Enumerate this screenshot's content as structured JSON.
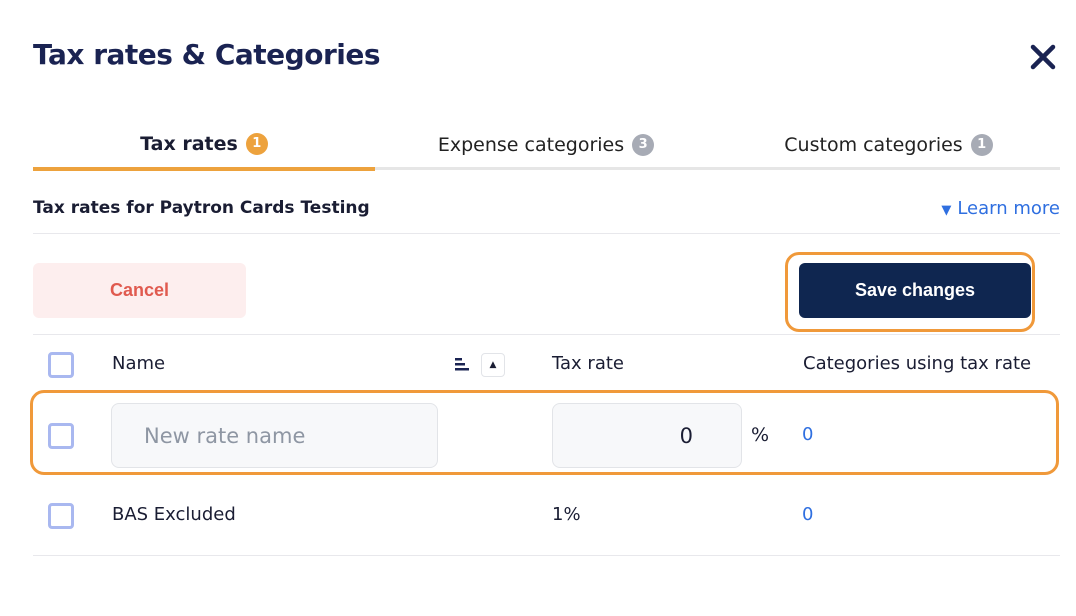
{
  "title": "Tax rates & Categories",
  "tabs": [
    {
      "label": "Tax rates",
      "count": "1"
    },
    {
      "label": "Expense categories",
      "count": "3"
    },
    {
      "label": "Custom categories",
      "count": "1"
    }
  ],
  "subtitle": "Tax rates for Paytron Cards Testing",
  "learn_more": "Learn more",
  "cancel": "Cancel",
  "save": "Save changes",
  "columns": {
    "name": "Name",
    "rate": "Tax rate",
    "categories": "Categories using tax rate"
  },
  "new_row": {
    "name_placeholder": "New rate name",
    "rate_value": "0",
    "percent": "%",
    "categories": "0"
  },
  "rows": [
    {
      "name": "BAS Excluded",
      "rate": "1%",
      "categories": "0"
    }
  ],
  "colors": {
    "accent": "#eda23d",
    "primary": "#0f2650",
    "link": "#2f6fe0",
    "highlight": "#f0993a"
  }
}
